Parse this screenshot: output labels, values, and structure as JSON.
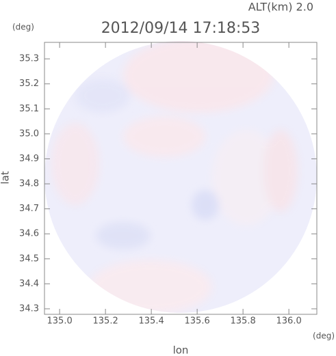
{
  "chart_data": {
    "type": "map",
    "title": "2012/09/14 17:18:53",
    "altitude_label": "ALT(km) 2.0",
    "y_unit": "(deg)",
    "x_unit": "(deg)",
    "xlabel": "lon",
    "ylabel": "lat",
    "xlim": [
      134.934,
      136.122
    ],
    "ylim": [
      34.278,
      35.366
    ],
    "xticks": [
      {
        "value": 135,
        "label": "135.0"
      },
      {
        "value": 135.2,
        "label": "135.2"
      },
      {
        "value": 135.4,
        "label": "135.4"
      },
      {
        "value": 135.6,
        "label": "135.6"
      },
      {
        "value": 135.8,
        "label": "135.8"
      },
      {
        "value": 136,
        "label": "136.0"
      }
    ],
    "yticks": [
      34.3,
      34.4,
      34.5,
      34.6,
      34.7,
      34.8,
      34.9,
      {
        "value": 35,
        "label": "35.0"
      },
      35.1,
      35.2,
      35.3
    ]
  }
}
